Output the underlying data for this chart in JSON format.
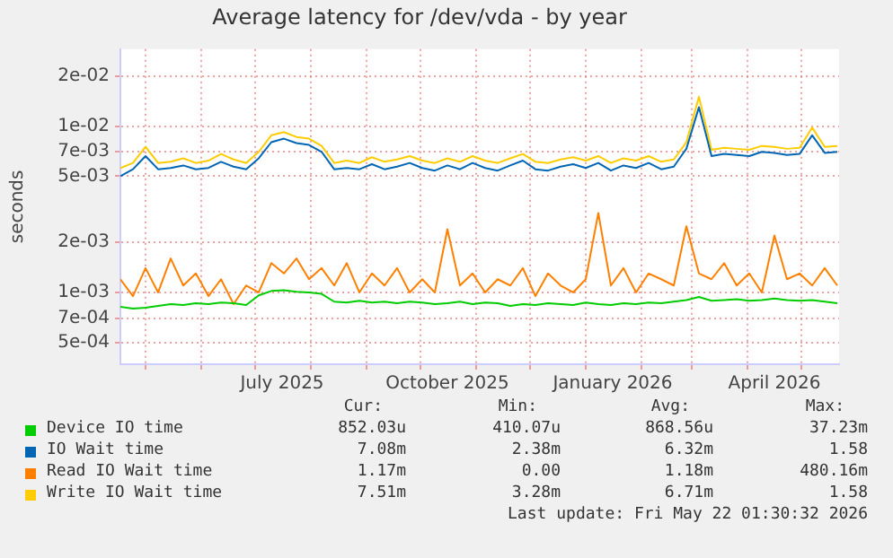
{
  "chart_data": {
    "type": "line",
    "title": "Average latency for /dev/vda - by year",
    "ylabel": "seconds",
    "log": "y",
    "grid": true,
    "legend": "bottom",
    "x": [
      "2025-04-17",
      "2025-04-24",
      "2025-05-01",
      "2025-05-08",
      "2025-05-15",
      "2025-05-22",
      "2025-05-29",
      "2025-06-05",
      "2025-06-12",
      "2025-06-19",
      "2025-06-26",
      "2025-07-03",
      "2025-07-10",
      "2025-07-17",
      "2025-07-24",
      "2025-07-31",
      "2025-08-07",
      "2025-08-14",
      "2025-08-21",
      "2025-08-28",
      "2025-09-04",
      "2025-09-11",
      "2025-09-18",
      "2025-09-25",
      "2025-10-02",
      "2025-10-09",
      "2025-10-16",
      "2025-10-23",
      "2025-10-30",
      "2025-11-06",
      "2025-11-13",
      "2025-11-20",
      "2025-11-27",
      "2025-12-04",
      "2025-12-11",
      "2025-12-18",
      "2025-12-25",
      "2026-01-01",
      "2026-01-08",
      "2026-01-15",
      "2026-01-22",
      "2026-01-29",
      "2026-02-05",
      "2026-02-12",
      "2026-02-19",
      "2026-02-26",
      "2026-03-05",
      "2026-03-12",
      "2026-03-19",
      "2026-03-26",
      "2026-04-02",
      "2026-04-09",
      "2026-04-16",
      "2026-04-23",
      "2026-04-30",
      "2026-05-07",
      "2026-05-14",
      "2026-05-21"
    ],
    "xlim": [
      "2025-04-17",
      "2026-05-22"
    ],
    "xticks": [
      {
        "value": "2025-05-01",
        "label": null
      },
      {
        "value": "2025-06-01",
        "label": null
      },
      {
        "value": "2025-07-01",
        "label": null
      },
      {
        "value": "2025-07-16",
        "label": "July 2025"
      },
      {
        "value": "2025-08-01",
        "label": null
      },
      {
        "value": "2025-09-01",
        "label": null
      },
      {
        "value": "2025-10-01",
        "label": null
      },
      {
        "value": "2025-10-16",
        "label": "October 2025"
      },
      {
        "value": "2025-11-01",
        "label": null
      },
      {
        "value": "2025-12-01",
        "label": null
      },
      {
        "value": "2026-01-01",
        "label": null
      },
      {
        "value": "2026-01-16",
        "label": "January 2026"
      },
      {
        "value": "2026-02-01",
        "label": null
      },
      {
        "value": "2026-03-01",
        "label": null
      },
      {
        "value": "2026-04-01",
        "label": null
      },
      {
        "value": "2026-04-16",
        "label": "April 2026"
      },
      {
        "value": "2026-05-01",
        "label": null
      }
    ],
    "ylim": [
      0.00037,
      0.029
    ],
    "yticks": [
      {
        "value": 0.0005,
        "label": "5e-04"
      },
      {
        "value": 0.0007,
        "label": "7e-04"
      },
      {
        "value": 0.001,
        "label": "1e-03"
      },
      {
        "value": 0.002,
        "label": "2e-03"
      },
      {
        "value": 0.005,
        "label": "5e-03"
      },
      {
        "value": 0.007,
        "label": "7e-03"
      },
      {
        "value": 0.01,
        "label": "1e-02"
      },
      {
        "value": 0.02,
        "label": "2e-02"
      }
    ],
    "series": [
      {
        "name": "Device IO time",
        "color": "#00cc00",
        "values": [
          0.00082,
          0.0008,
          0.00081,
          0.00083,
          0.00085,
          0.00084,
          0.00086,
          0.00085,
          0.00087,
          0.00086,
          0.00084,
          0.00096,
          0.00102,
          0.00103,
          0.00101,
          0.001,
          0.00098,
          0.00088,
          0.00087,
          0.00089,
          0.00087,
          0.00088,
          0.00086,
          0.00088,
          0.00087,
          0.00085,
          0.00086,
          0.00088,
          0.00085,
          0.00087,
          0.00086,
          0.00083,
          0.00085,
          0.00084,
          0.00086,
          0.00085,
          0.00084,
          0.00087,
          0.00085,
          0.00084,
          0.00086,
          0.00085,
          0.00087,
          0.00086,
          0.00088,
          0.0009,
          0.00094,
          0.00089,
          0.0009,
          0.00091,
          0.00089,
          0.0009,
          0.00092,
          0.0009,
          0.00089,
          0.0009,
          0.00088,
          0.00086
        ]
      },
      {
        "name": "IO Wait time",
        "color": "#0066b3",
        "values": [
          0.005,
          0.0055,
          0.0066,
          0.0055,
          0.0056,
          0.0058,
          0.0055,
          0.0056,
          0.0061,
          0.0057,
          0.0055,
          0.0064,
          0.008,
          0.0084,
          0.0079,
          0.0077,
          0.007,
          0.0055,
          0.0056,
          0.0055,
          0.0059,
          0.0055,
          0.0057,
          0.006,
          0.0056,
          0.0054,
          0.0058,
          0.0055,
          0.006,
          0.0056,
          0.0054,
          0.0058,
          0.0062,
          0.0055,
          0.0054,
          0.0057,
          0.0059,
          0.0056,
          0.006,
          0.0054,
          0.0058,
          0.0056,
          0.006,
          0.0055,
          0.0057,
          0.0073,
          0.013,
          0.0066,
          0.0068,
          0.0067,
          0.0066,
          0.007,
          0.0069,
          0.0067,
          0.0068,
          0.0088,
          0.0069,
          0.007
        ]
      },
      {
        "name": "Read IO Wait time",
        "color": "#ff8000",
        "values": [
          0.0012,
          0.00095,
          0.0014,
          0.001,
          0.0016,
          0.0011,
          0.0013,
          0.00095,
          0.0012,
          0.00085,
          0.0011,
          0.001,
          0.0015,
          0.0013,
          0.0016,
          0.0012,
          0.0014,
          0.0011,
          0.0015,
          0.001,
          0.0013,
          0.0011,
          0.0014,
          0.001,
          0.0012,
          0.001,
          0.0024,
          0.0011,
          0.0013,
          0.001,
          0.0012,
          0.0011,
          0.0014,
          0.00095,
          0.0013,
          0.0011,
          0.001,
          0.0012,
          0.003,
          0.0011,
          0.0014,
          0.001,
          0.0013,
          0.0012,
          0.0011,
          0.0025,
          0.0013,
          0.0012,
          0.0015,
          0.0011,
          0.0013,
          0.001,
          0.0022,
          0.0012,
          0.0013,
          0.0011,
          0.0014,
          0.0011
        ]
      },
      {
        "name": "Write IO Wait time",
        "color": "#ffcc00",
        "values": [
          0.0056,
          0.006,
          0.0075,
          0.006,
          0.0061,
          0.0064,
          0.006,
          0.0062,
          0.0068,
          0.0063,
          0.006,
          0.007,
          0.0088,
          0.0092,
          0.0086,
          0.0084,
          0.0076,
          0.006,
          0.0062,
          0.006,
          0.0065,
          0.0061,
          0.0063,
          0.0066,
          0.0062,
          0.006,
          0.0064,
          0.0061,
          0.0066,
          0.0062,
          0.006,
          0.0064,
          0.0068,
          0.0061,
          0.006,
          0.0063,
          0.0065,
          0.0062,
          0.0066,
          0.006,
          0.0064,
          0.0062,
          0.0066,
          0.0061,
          0.0063,
          0.008,
          0.015,
          0.0072,
          0.0074,
          0.0073,
          0.0072,
          0.0076,
          0.0075,
          0.0073,
          0.0074,
          0.0098,
          0.0075,
          0.0076
        ]
      }
    ],
    "annotations": [
      "Cur:",
      "Min:",
      "Avg:",
      "Max:",
      "852.03u",
      "410.07u",
      "868.56u",
      "37.23m",
      "7.08m",
      "2.38m",
      "6.32m",
      "1.58",
      "1.17m",
      "0.00",
      "1.18m",
      "480.16m",
      "7.51m",
      "3.28m",
      "6.71m",
      "1.58",
      "Last update: Fri May 22 01:30:32 2026"
    ]
  }
}
